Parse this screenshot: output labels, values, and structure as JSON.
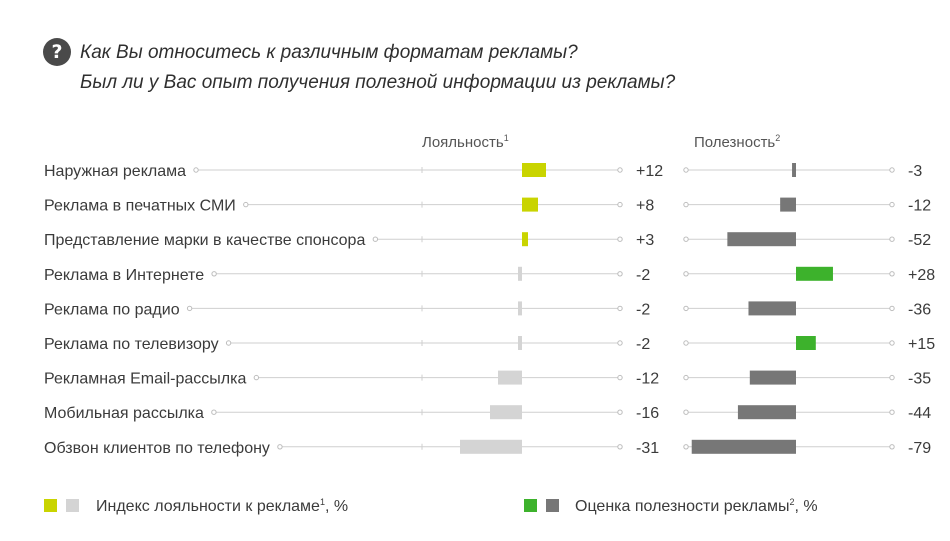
{
  "question": {
    "icon": "question-icon",
    "line1": "Как Вы относитесь к различным форматам рекламы?",
    "line2": "Был ли у Вас опыт получения полезной информации из рекламы?"
  },
  "chart_data": [
    {
      "type": "bar",
      "title": "Лояльность",
      "title_sup": "1",
      "categories": [
        "Наружная реклама",
        "Реклама в печатных СМИ",
        "Представление марки в качестве спонсора",
        "Реклама в Интернете",
        "Реклама по радио",
        "Реклама по телевизору",
        "Рекламная Email-рассылка",
        "Мобильная рассылка",
        "Обзвон клиентов по телефону"
      ],
      "values": [
        12,
        8,
        3,
        -2,
        -2,
        -2,
        -12,
        -16,
        -31
      ],
      "value_labels": [
        "+12",
        "+8",
        "+3",
        "-2",
        "-2",
        "-2",
        "-12",
        "-16",
        "-31"
      ],
      "colors": {
        "positive": "#c9d400",
        "negative": "#d4d4d4"
      }
    },
    {
      "type": "bar",
      "title": "Полезность",
      "title_sup": "2",
      "categories": [
        "Наружная реклама",
        "Реклама в печатных СМИ",
        "Представление марки в качестве спонсора",
        "Реклама в Интернете",
        "Реклама по радио",
        "Реклама по телевизору",
        "Рекламная Email-рассылка",
        "Мобильная рассылка",
        "Обзвон клиентов по телефону"
      ],
      "values": [
        -3,
        -12,
        -52,
        28,
        -36,
        15,
        -35,
        -44,
        -79
      ],
      "value_labels": [
        "-3",
        "-12",
        "-52",
        "+28",
        "-36",
        "+15",
        "-35",
        "-44",
        "-79"
      ],
      "colors": {
        "positive": "#3db22c",
        "negative": "#777777"
      }
    }
  ],
  "legend": [
    {
      "label": "Индекс лояльности к рекламе",
      "sup": "1",
      "suffix": ", %",
      "colors": [
        "#c9d400",
        "#d4d4d4"
      ]
    },
    {
      "label": "Оценка полезности рекламы",
      "sup": "2",
      "suffix": ", %",
      "colors": [
        "#3db22c",
        "#777777"
      ]
    }
  ]
}
